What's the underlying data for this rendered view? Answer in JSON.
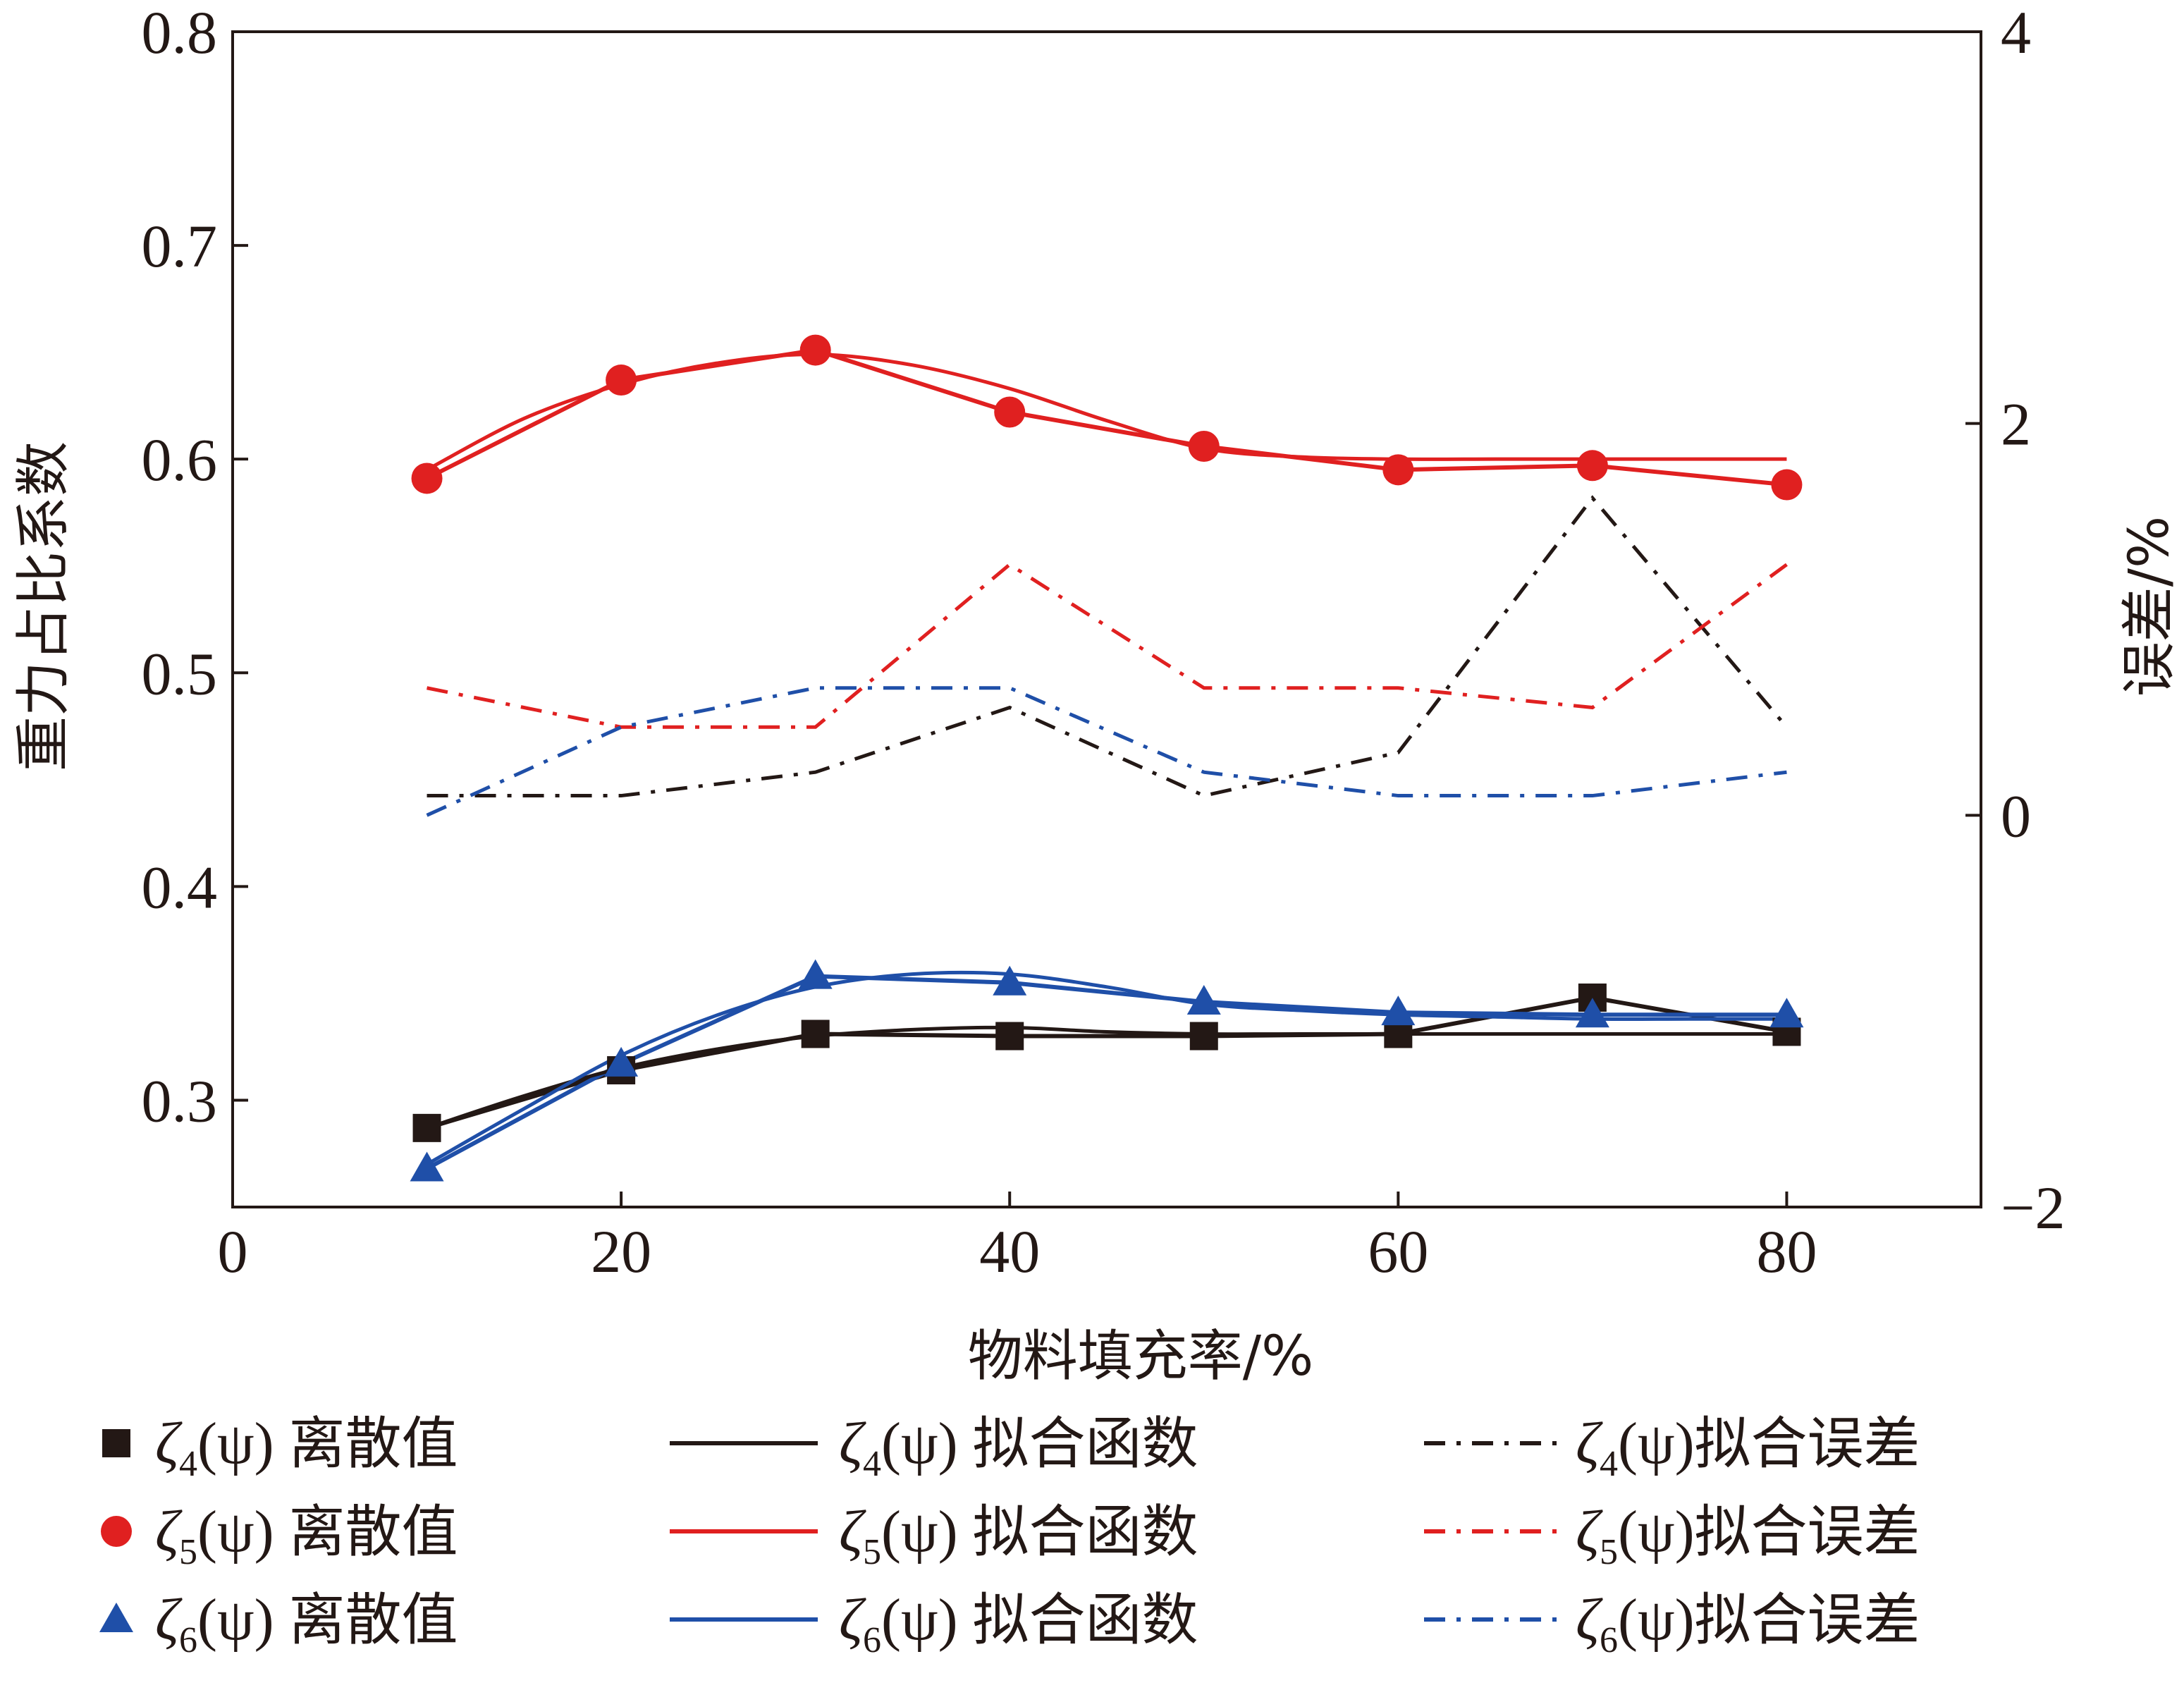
{
  "chart_data": {
    "type": "line",
    "x_axis": {
      "label": "物料填充率/%",
      "range": [
        0,
        90
      ],
      "ticks": [
        0,
        20,
        40,
        60,
        80
      ]
    },
    "y_left": {
      "label": "重力占比系数",
      "range": [
        0.25,
        0.8
      ],
      "ticks": [
        "0.3",
        "0.4",
        "0.5",
        "0.6",
        "0.7",
        "0.8"
      ]
    },
    "y_right": {
      "label": "误差/%",
      "range": [
        -2,
        4
      ],
      "ticks": [
        "−2",
        "0",
        "2",
        "4"
      ]
    },
    "grid": false,
    "legend_position": "bottom",
    "x": [
      10,
      20,
      30,
      40,
      50,
      60,
      70,
      80
    ],
    "series": [
      {
        "key": "z4_discrete",
        "name": "ζ4(ψ) 离散值",
        "axis": "left",
        "kind": "markers",
        "marker": "square",
        "color": "#231815",
        "values": [
          0.287,
          0.314,
          0.331,
          0.33,
          0.33,
          0.331,
          0.348,
          0.332
        ]
      },
      {
        "key": "z5_discrete",
        "name": "ζ5(ψ) 离散值",
        "axis": "left",
        "kind": "markers",
        "marker": "circle",
        "color": "#e02020",
        "values": [
          0.591,
          0.637,
          0.651,
          0.622,
          0.606,
          0.595,
          0.597,
          0.588
        ]
      },
      {
        "key": "z6_discrete",
        "name": "ζ6(ψ) 离散值",
        "axis": "left",
        "kind": "markers",
        "marker": "triangle",
        "color": "#1f4fa8",
        "values": [
          0.268,
          0.317,
          0.358,
          0.355,
          0.346,
          0.341,
          0.34,
          0.34
        ]
      },
      {
        "key": "z4_fit",
        "name": "ζ4(ψ) 拟合函数",
        "axis": "left",
        "kind": "solid",
        "color": "#231815",
        "x": [
          10,
          15,
          20,
          25,
          30,
          35,
          40,
          45,
          50,
          55,
          60,
          65,
          70,
          75,
          80
        ],
        "values": [
          0.287,
          0.302,
          0.315,
          0.324,
          0.33,
          0.333,
          0.334,
          0.332,
          0.331,
          0.331,
          0.331,
          0.331,
          0.331,
          0.331,
          0.331
        ]
      },
      {
        "key": "z5_fit",
        "name": "ζ5(ψ) 拟合函数",
        "axis": "left",
        "kind": "solid",
        "color": "#e02020",
        "x": [
          10,
          15,
          20,
          25,
          30,
          35,
          40,
          45,
          50,
          55,
          60,
          65,
          70,
          75,
          80
        ],
        "values": [
          0.595,
          0.619,
          0.635,
          0.645,
          0.649,
          0.644,
          0.633,
          0.618,
          0.605,
          0.601,
          0.6,
          0.6,
          0.6,
          0.6,
          0.6
        ]
      },
      {
        "key": "z6_fit",
        "name": "ζ6(ψ) 拟合函数",
        "axis": "left",
        "kind": "solid",
        "color": "#1f4fa8",
        "x": [
          10,
          15,
          20,
          25,
          30,
          35,
          40,
          45,
          50,
          55,
          60,
          65,
          70,
          75,
          80
        ],
        "values": [
          0.27,
          0.296,
          0.321,
          0.34,
          0.353,
          0.359,
          0.359,
          0.353,
          0.345,
          0.342,
          0.34,
          0.339,
          0.338,
          0.338,
          0.338
        ]
      },
      {
        "key": "z4_err",
        "name": "ζ4(ψ)拟合误差",
        "axis": "right",
        "kind": "dashdot",
        "color": "#231815",
        "values": [
          0.1,
          0.1,
          0.22,
          0.55,
          0.1,
          0.32,
          1.62,
          0.45
        ]
      },
      {
        "key": "z5_err",
        "name": "ζ5(ψ)拟合误差",
        "axis": "right",
        "kind": "dashdot",
        "color": "#e02020",
        "values": [
          0.65,
          0.45,
          0.45,
          1.28,
          0.65,
          0.65,
          0.55,
          1.28
        ]
      },
      {
        "key": "z6_err",
        "name": "ζ6(ψ)拟合误差",
        "axis": "right",
        "kind": "dashdot",
        "color": "#1f4fa8",
        "values": [
          0.0,
          0.45,
          0.65,
          0.65,
          0.22,
          0.1,
          0.1,
          0.22
        ]
      }
    ]
  },
  "legend": {
    "col1": [
      {
        "sym": "ζ",
        "sub": "4",
        "rest": "(ψ) ",
        "cjk": "离散值"
      },
      {
        "sym": "ζ",
        "sub": "5",
        "rest": "(ψ) ",
        "cjk": "离散值"
      },
      {
        "sym": "ζ",
        "sub": "6",
        "rest": "(ψ) ",
        "cjk": "离散值"
      }
    ],
    "col2": [
      {
        "sym": "ζ",
        "sub": "4",
        "rest": "(ψ) ",
        "cjk": "拟合函数"
      },
      {
        "sym": "ζ",
        "sub": "5",
        "rest": "(ψ) ",
        "cjk": "拟合函数"
      },
      {
        "sym": "ζ",
        "sub": "6",
        "rest": "(ψ) ",
        "cjk": "拟合函数"
      }
    ],
    "col3": [
      {
        "sym": "ζ",
        "sub": "4",
        "rest": "(ψ)",
        "cjk": "拟合误差"
      },
      {
        "sym": "ζ",
        "sub": "5",
        "rest": "(ψ)",
        "cjk": "拟合误差"
      },
      {
        "sym": "ζ",
        "sub": "6",
        "rest": "(ψ)",
        "cjk": "拟合误差"
      }
    ]
  }
}
